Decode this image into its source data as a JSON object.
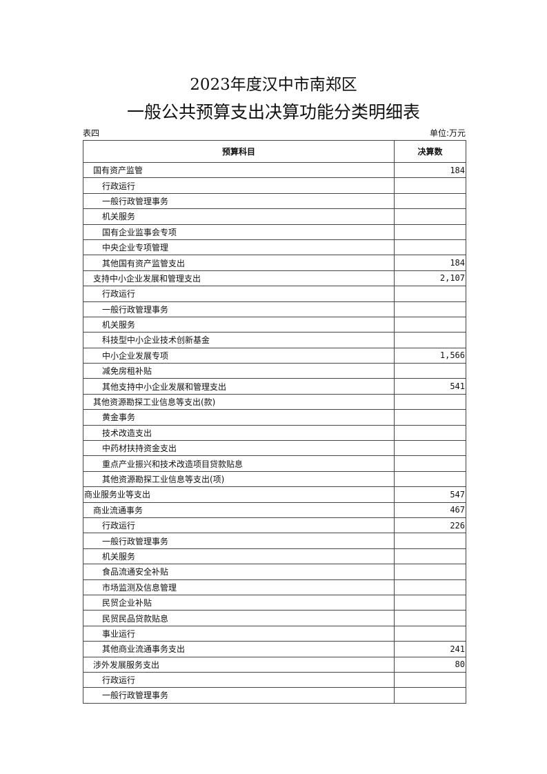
{
  "title_line1": "2023年度汉中市南郑区",
  "title_line2": "一般公共预算支出决算功能分类明细表",
  "table_label": "表四",
  "unit": "单位:万元",
  "headers": [
    "预算科目",
    "决算数"
  ],
  "rows": [
    {
      "name": "国有资产监管",
      "level": 1,
      "value": "184"
    },
    {
      "name": "行政运行",
      "level": 2,
      "value": ""
    },
    {
      "name": "一般行政管理事务",
      "level": 2,
      "value": ""
    },
    {
      "name": "机关服务",
      "level": 2,
      "value": ""
    },
    {
      "name": "国有企业监事会专项",
      "level": 2,
      "value": ""
    },
    {
      "name": "中央企业专项管理",
      "level": 2,
      "value": ""
    },
    {
      "name": "其他国有资产监管支出",
      "level": 2,
      "value": "184"
    },
    {
      "name": "支持中小企业发展和管理支出",
      "level": 1,
      "value": "2,107"
    },
    {
      "name": "行政运行",
      "level": 2,
      "value": ""
    },
    {
      "name": "一般行政管理事务",
      "level": 2,
      "value": ""
    },
    {
      "name": "机关服务",
      "level": 2,
      "value": ""
    },
    {
      "name": "科技型中小企业技术创新基金",
      "level": 2,
      "value": ""
    },
    {
      "name": "中小企业发展专项",
      "level": 2,
      "value": "1,566"
    },
    {
      "name": "减免房租补贴",
      "level": 2,
      "value": ""
    },
    {
      "name": "其他支持中小企业发展和管理支出",
      "level": 2,
      "value": "541"
    },
    {
      "name": "其他资源勘探工业信息等支出(款)",
      "level": 1,
      "value": ""
    },
    {
      "name": "黄金事务",
      "level": 2,
      "value": ""
    },
    {
      "name": "技术改造支出",
      "level": 2,
      "value": ""
    },
    {
      "name": "中药材扶持资金支出",
      "level": 2,
      "value": ""
    },
    {
      "name": "重点产业振兴和技术改造项目贷款贴息",
      "level": 2,
      "value": ""
    },
    {
      "name": "其他资源勘探工业信息等支出(项)",
      "level": 2,
      "value": ""
    },
    {
      "name": "商业服务业等支出",
      "level": 0,
      "value": "547"
    },
    {
      "name": "商业流通事务",
      "level": 1,
      "value": "467"
    },
    {
      "name": "行政运行",
      "level": 2,
      "value": "226"
    },
    {
      "name": "一般行政管理事务",
      "level": 2,
      "value": ""
    },
    {
      "name": "机关服务",
      "level": 2,
      "value": ""
    },
    {
      "name": "食品流通安全补贴",
      "level": 2,
      "value": ""
    },
    {
      "name": "市场监测及信息管理",
      "level": 2,
      "value": ""
    },
    {
      "name": "民贸企业补贴",
      "level": 2,
      "value": ""
    },
    {
      "name": "民贸民品贷款贴息",
      "level": 2,
      "value": ""
    },
    {
      "name": "事业运行",
      "level": 2,
      "value": ""
    },
    {
      "name": "其他商业流通事务支出",
      "level": 2,
      "value": "241"
    },
    {
      "name": "涉外发展服务支出",
      "level": 1,
      "value": "80"
    },
    {
      "name": "行政运行",
      "level": 2,
      "value": ""
    },
    {
      "name": "一般行政管理事务",
      "level": 2,
      "value": ""
    }
  ]
}
